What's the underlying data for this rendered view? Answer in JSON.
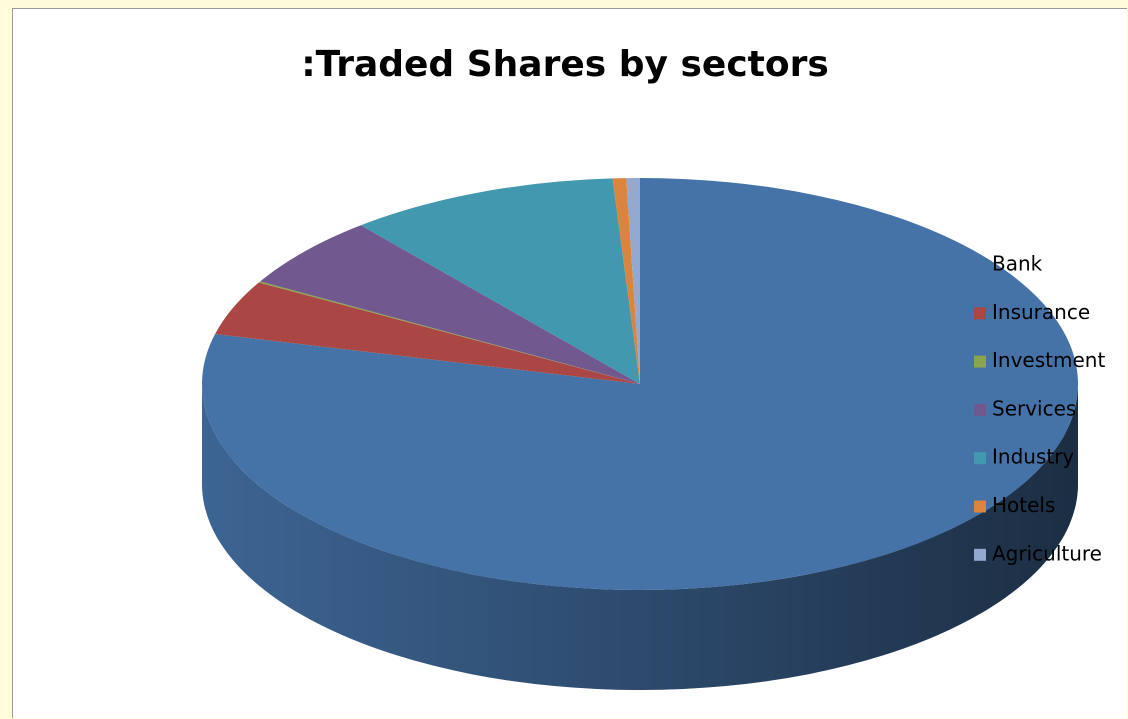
{
  "chart_data": {
    "type": "pie3d",
    "title": ":Traded Shares by sectors",
    "series": [
      {
        "name": "Bank",
        "color": "#4572a7",
        "values": [
          78.9
        ]
      },
      {
        "name": "Insurance",
        "color": "#aa4643",
        "values": [
          4.3
        ]
      },
      {
        "name": "Investment",
        "color": "#89a54e",
        "values": [
          0.1
        ]
      },
      {
        "name": "Services",
        "color": "#71588f",
        "values": [
          5.7
        ]
      },
      {
        "name": "Industry",
        "color": "#4198af",
        "values": [
          10
        ]
      },
      {
        "name": "Hotels",
        "color": "#db843d",
        "values": [
          0.5
        ]
      },
      {
        "name": "Agriculture",
        "color": "#93a9cf",
        "values": [
          0.5
        ]
      }
    ],
    "legend": "right"
  }
}
